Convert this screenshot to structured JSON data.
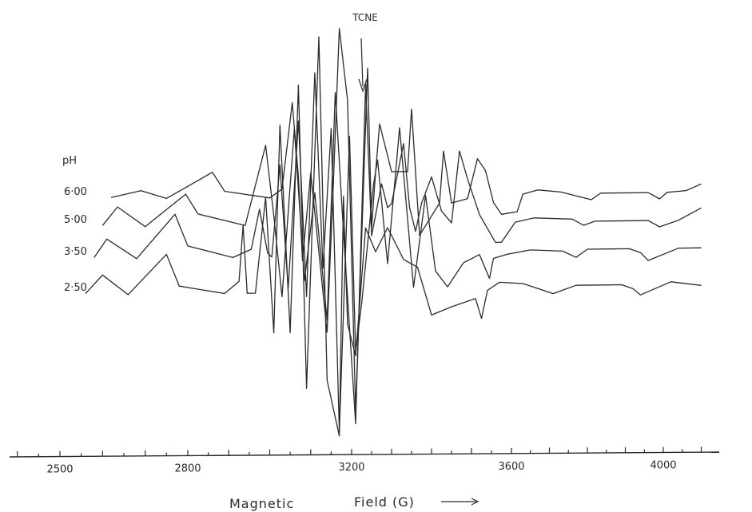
{
  "chart_data": {
    "type": "line",
    "title": "",
    "xlabel": "Magnetic Field (G)",
    "xlabel_words": [
      "Magnetic",
      "Field (G)"
    ],
    "ylabel": "",
    "xlim": [
      2400,
      4100
    ],
    "xticks": [
      2500,
      2800,
      3200,
      3600,
      4000
    ],
    "grid": false,
    "legend_title": "pH",
    "annotation": {
      "text": "TCNE",
      "x": 3240
    },
    "series": [
      {
        "name": "6·00",
        "offset": 250,
        "x": [
          2380,
          2620,
          2690,
          2750,
          2860,
          2890,
          3000,
          3030,
          3055,
          3070,
          3080,
          3100,
          3140,
          3155,
          3170,
          3190,
          3210,
          3240,
          3250,
          3260,
          3270,
          3290,
          3300,
          3340,
          3350,
          3370,
          3420,
          3430,
          3450,
          3490,
          3515,
          3535,
          3555,
          3575,
          3615,
          3630,
          3670,
          3730,
          3810,
          3835,
          3860,
          3960,
          3990,
          4010,
          4060,
          4100
        ],
        "y": [
          0,
          2,
          10,
          0,
          32,
          8,
          -1,
          10,
          118,
          25,
          -80,
          30,
          -170,
          10,
          210,
          120,
          -270,
          160,
          -40,
          30,
          90,
          50,
          30,
          30,
          108,
          -50,
          -10,
          55,
          -10,
          -5,
          45,
          30,
          -10,
          -25,
          -22,
          0,
          5,
          2,
          -8,
          0,
          0,
          0,
          -8,
          0,
          2,
          10
        ]
      },
      {
        "name": "5·00",
        "offset": 285,
        "x": [
          2380,
          2600,
          2635,
          2700,
          2795,
          2825,
          2940,
          2990,
          3010,
          3030,
          3060,
          3085,
          3110,
          3140,
          3160,
          3180,
          3210,
          3235,
          3250,
          3275,
          3290,
          3300,
          3330,
          3345,
          3360,
          3375,
          3400,
          3425,
          3450,
          3470,
          3490,
          3520,
          3560,
          3575,
          3610,
          3660,
          3760,
          3790,
          3820,
          3930,
          3960,
          3990,
          4040,
          4100
        ],
        "y": [
          0,
          2,
          25,
          0,
          40,
          15,
          0,
          100,
          12,
          -90,
          120,
          -70,
          40,
          -120,
          165,
          -10,
          -250,
          175,
          -15,
          50,
          20,
          25,
          100,
          20,
          -10,
          25,
          58,
          15,
          0,
          90,
          55,
          10,
          -25,
          -25,
          0,
          5,
          3,
          -5,
          0,
          0,
          0,
          -8,
          0,
          15
        ]
      },
      {
        "name": "3·50",
        "offset": 325,
        "x": [
          2380,
          2580,
          2610,
          2680,
          2770,
          2800,
          2910,
          2955,
          2975,
          2995,
          3005,
          3025,
          3045,
          3070,
          3090,
          3110,
          3130,
          3150,
          3170,
          3195,
          3210,
          3225,
          3255,
          3265,
          3290,
          3320,
          3355,
          3385,
          3410,
          3440,
          3480,
          3520,
          3545,
          3555,
          3590,
          3650,
          3735,
          3770,
          3800,
          3910,
          3940,
          3960,
          4040,
          4100
        ],
        "y": [
          0,
          2,
          25,
          0,
          55,
          15,
          0,
          10,
          60,
          5,
          0,
          115,
          -40,
          170,
          -50,
          230,
          -15,
          160,
          -220,
          150,
          -120,
          -60,
          90,
          120,
          -10,
          160,
          -40,
          75,
          -20,
          -40,
          -10,
          0,
          -30,
          -5,
          0,
          5,
          3,
          -5,
          5,
          5,
          0,
          -10,
          5,
          5
        ]
      },
      {
        "name": "2·50",
        "offset": 370,
        "x": [
          2380,
          2560,
          2600,
          2660,
          2750,
          2780,
          2890,
          2925,
          2935,
          2945,
          2965,
          2990,
          3010,
          3025,
          3050,
          3070,
          3090,
          3120,
          3140,
          3170,
          3180,
          3190,
          3210,
          3235,
          3260,
          3290,
          3330,
          3365,
          3400,
          3450,
          3510,
          3525,
          3540,
          3570,
          3630,
          3710,
          3740,
          3770,
          3890,
          3920,
          3940,
          4020,
          4100
        ],
        "y": [
          0,
          2,
          25,
          0,
          50,
          10,
          0,
          15,
          85,
          0,
          0,
          120,
          -50,
          210,
          -50,
          260,
          -120,
          320,
          -110,
          -180,
          120,
          -40,
          -80,
          80,
          50,
          80,
          40,
          30,
          -30,
          -20,
          -10,
          -35,
          0,
          10,
          8,
          -5,
          0,
          5,
          5,
          0,
          -8,
          8,
          3
        ]
      }
    ]
  }
}
